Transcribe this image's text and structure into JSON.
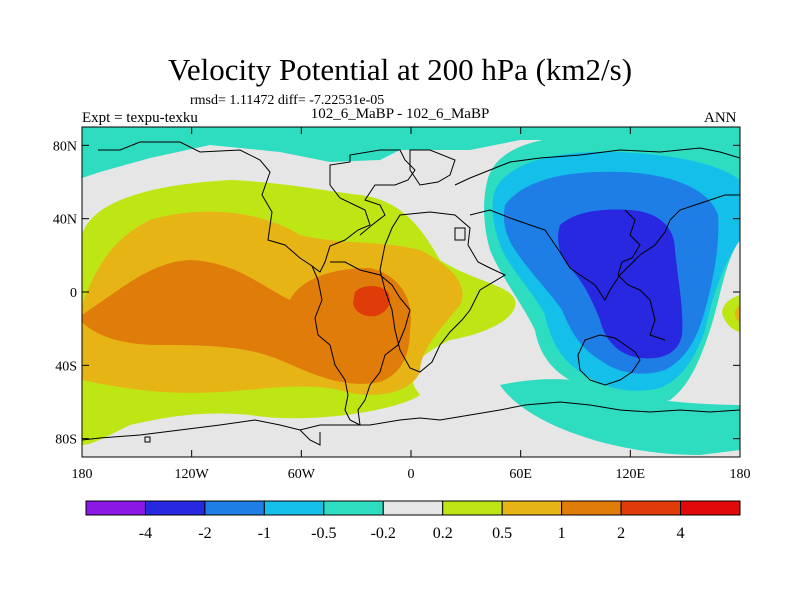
{
  "chart_data": {
    "type": "contour-map",
    "title": "Velocity Potential at 200 hPa (km2/s)",
    "subtitle": "rmsd= 1.11472 diff= -7.22531e-05",
    "experiment_label": "Expt = texpu-texku",
    "cases_label": "102_6_MaBP - 102_6_MaBP",
    "season": "ANN",
    "x_ticks": [
      "180",
      "120W",
      "60W",
      "0",
      "60E",
      "120E",
      "180"
    ],
    "x_tick_values": [
      -180,
      -120,
      -60,
      0,
      60,
      120,
      180
    ],
    "y_ticks": [
      "80N",
      "40N",
      "0",
      "40S",
      "80S"
    ],
    "y_tick_values": [
      80,
      40,
      0,
      -40,
      -80
    ],
    "xlim": [
      -180,
      180
    ],
    "ylim": [
      -90,
      90
    ],
    "colorbar": {
      "labels": [
        "-4",
        "-2",
        "-1",
        "-0.5",
        "-0.2",
        "0.2",
        "0.5",
        "1",
        "2",
        "4"
      ],
      "colors": [
        "#8a19e6",
        "#2828e0",
        "#1e7ee6",
        "#14c0ea",
        "#2edcc0",
        "#e6e6e6",
        "#bee614",
        "#e6b414",
        "#e07c0a",
        "#e03c0a",
        "#e00a0a"
      ]
    }
  }
}
